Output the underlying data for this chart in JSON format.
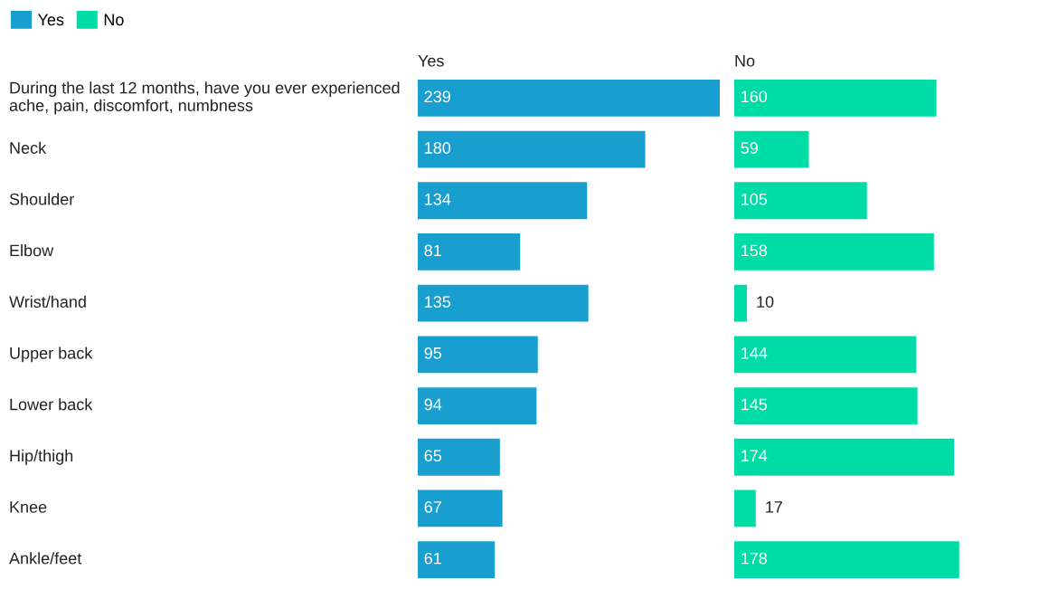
{
  "chart_data": [
    {
      "type": "bar",
      "orientation": "horizontal",
      "title": "Yes",
      "categories": [
        "During the last 12 months, have you ever experienced\nache, pain, discomfort, numbness",
        "Neck",
        "Shoulder",
        "Elbow",
        "Wrist/hand",
        "Upper back",
        "Lower back",
        "Hip/thigh",
        "Knee",
        "Ankle/feet"
      ],
      "series": [
        {
          "name": "Yes",
          "color": "#189fcf",
          "values": [
            239,
            180,
            134,
            81,
            135,
            95,
            94,
            65,
            67,
            61
          ]
        }
      ],
      "data_labels": true,
      "legend": "top left"
    },
    {
      "type": "bar",
      "orientation": "horizontal",
      "title": "No",
      "categories": [
        null,
        null,
        null,
        null,
        null,
        null,
        null,
        null,
        null,
        null
      ],
      "series": [
        {
          "name": "No",
          "color": "#00dca5",
          "values": [
            160,
            59,
            105,
            158,
            10,
            144,
            145,
            174,
            17,
            178
          ]
        }
      ],
      "data_labels": true
    }
  ]
}
